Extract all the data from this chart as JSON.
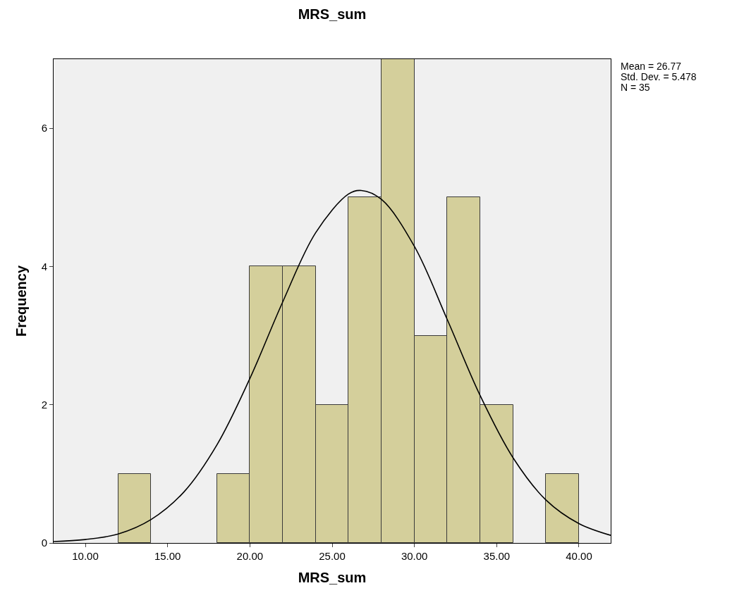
{
  "chart_data": {
    "type": "histogram",
    "title": "MRS_sum",
    "xlabel": "MRS_sum",
    "ylabel": "Frequency",
    "bins": [
      12,
      14,
      16,
      18,
      20,
      22,
      24,
      26,
      28,
      30,
      32,
      34,
      36,
      38,
      40
    ],
    "values": [
      1,
      0,
      0,
      1,
      4,
      4,
      2,
      5,
      7,
      3,
      5,
      2,
      0,
      1
    ],
    "color": "#d4cf9b",
    "series": [
      {
        "type": "line",
        "color": "#000000",
        "x": [
          8.07,
          10,
          12,
          14,
          16,
          18,
          20,
          22,
          24,
          26,
          26.77,
          28,
          30,
          32,
          34,
          36,
          38,
          40,
          41.93
        ],
        "values": [
          0.02,
          0.05,
          0.13,
          0.34,
          0.74,
          1.42,
          2.38,
          3.49,
          4.49,
          5.05,
          5.1,
          4.97,
          4.29,
          3.23,
          2.13,
          1.23,
          0.62,
          0.28,
          0.11
        ]
      }
    ],
    "xlim": [
      8.07,
      41.93
    ],
    "ylim": [
      0,
      7
    ],
    "xticks": [
      {
        "value": 10,
        "label": "10.00"
      },
      {
        "value": 15,
        "label": "15.00"
      },
      {
        "value": 20,
        "label": "20.00"
      },
      {
        "value": 25,
        "label": "25.00"
      },
      {
        "value": 30,
        "label": "30.00"
      },
      {
        "value": 35,
        "label": "35.00"
      },
      {
        "value": 40,
        "label": "40.00"
      }
    ],
    "yticks": [
      0,
      2,
      4,
      6
    ],
    "annotations": [
      "Mean = 26.77",
      "Std. Dev. = 5.478",
      "N = 35"
    ]
  }
}
